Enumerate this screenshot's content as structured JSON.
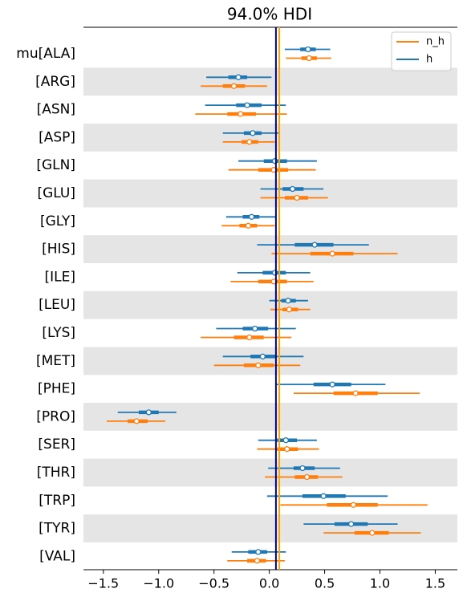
{
  "chart_data": {
    "type": "forest",
    "title": "94.0% HDI",
    "categories": [
      "mu[ALA]",
      "[ARG]",
      "[ASN]",
      "[ASP]",
      "[GLN]",
      "[GLU]",
      "[GLY]",
      "[HIS]",
      "[ILE]",
      "[LEU]",
      "[LYS]",
      "[MET]",
      "[PHE]",
      "[PRO]",
      "[SER]",
      "[THR]",
      "[TRP]",
      "[TYR]",
      "[VAL]"
    ],
    "series": [
      {
        "name": "n_h",
        "color": "#ff7f0e",
        "hdi_low": [
          0.15,
          -0.62,
          -0.67,
          -0.42,
          -0.37,
          -0.08,
          -0.43,
          0.02,
          -0.35,
          0.01,
          -0.62,
          -0.5,
          0.22,
          -1.47,
          -0.11,
          -0.04,
          0.1,
          0.49,
          -0.38
        ],
        "q25": [
          0.29,
          -0.42,
          -0.38,
          -0.25,
          -0.1,
          0.14,
          -0.27,
          0.37,
          -0.1,
          0.12,
          -0.32,
          -0.23,
          0.58,
          -1.28,
          0.07,
          0.23,
          0.52,
          0.77,
          -0.2
        ],
        "values": [
          0.36,
          -0.32,
          -0.26,
          -0.18,
          0.04,
          0.25,
          -0.19,
          0.57,
          0.04,
          0.18,
          -0.18,
          -0.1,
          0.78,
          -1.2,
          0.16,
          0.34,
          0.76,
          0.93,
          -0.11
        ],
        "q75": [
          0.43,
          -0.22,
          -0.12,
          -0.1,
          0.17,
          0.35,
          -0.11,
          0.76,
          0.16,
          0.26,
          -0.05,
          0.04,
          0.98,
          -1.1,
          0.26,
          0.44,
          0.98,
          1.08,
          -0.03
        ],
        "hdi_high": [
          0.56,
          -0.02,
          0.16,
          0.05,
          0.42,
          0.53,
          0.05,
          1.16,
          0.4,
          0.37,
          0.2,
          0.28,
          1.36,
          -0.94,
          0.45,
          0.66,
          1.43,
          1.37,
          0.14
        ]
      },
      {
        "name": "h",
        "color": "#1f77b4",
        "hdi_low": [
          0.14,
          -0.57,
          -0.58,
          -0.42,
          -0.28,
          -0.08,
          -0.39,
          -0.11,
          -0.29,
          0.0,
          -0.48,
          -0.42,
          0.06,
          -1.37,
          -0.1,
          -0.01,
          -0.02,
          0.31,
          -0.34
        ],
        "q25": [
          0.28,
          -0.37,
          -0.3,
          -0.23,
          -0.05,
          0.12,
          -0.24,
          0.23,
          -0.06,
          0.11,
          -0.24,
          -0.17,
          0.4,
          -1.18,
          0.07,
          0.22,
          0.3,
          0.59,
          -0.19
        ],
        "values": [
          0.35,
          -0.28,
          -0.2,
          -0.15,
          0.05,
          0.21,
          -0.16,
          0.41,
          0.05,
          0.17,
          -0.13,
          -0.06,
          0.57,
          -1.09,
          0.15,
          0.3,
          0.49,
          0.74,
          -0.1
        ],
        "q75": [
          0.42,
          -0.2,
          -0.07,
          -0.07,
          0.16,
          0.31,
          -0.09,
          0.58,
          0.15,
          0.24,
          -0.01,
          0.06,
          0.74,
          -1.0,
          0.25,
          0.41,
          0.69,
          0.89,
          -0.02
        ],
        "hdi_high": [
          0.55,
          0.02,
          0.15,
          0.09,
          0.43,
          0.49,
          0.06,
          0.9,
          0.37,
          0.35,
          0.24,
          0.31,
          1.05,
          -0.84,
          0.43,
          0.64,
          1.07,
          1.16,
          0.15
        ]
      }
    ],
    "reference_lines": [
      {
        "value": 0.06,
        "color": "#00008b"
      },
      {
        "value": 0.09,
        "color": "#ffa500"
      }
    ],
    "xlim": [
      -1.68,
      1.7
    ],
    "xticks": [
      {
        "value": -1.5,
        "label": "−1.5"
      },
      {
        "value": -1.0,
        "label": "−1.0"
      },
      {
        "value": -0.5,
        "label": "−0.5"
      },
      {
        "value": 0.0,
        "label": "0.0"
      },
      {
        "value": 0.5,
        "label": "0.5"
      },
      {
        "value": 1.0,
        "label": "1.0"
      },
      {
        "value": 1.5,
        "label": "1.5"
      }
    ],
    "row_bands": true,
    "legend": "upper right"
  }
}
